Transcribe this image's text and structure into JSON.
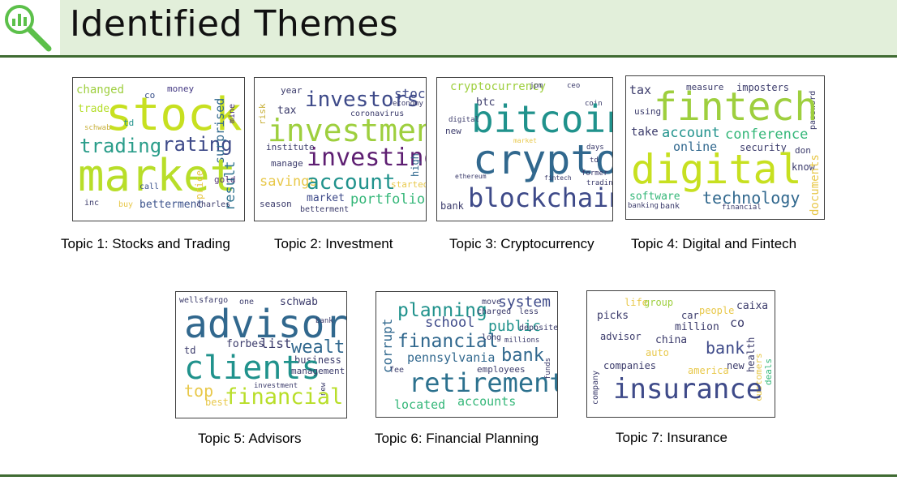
{
  "header": {
    "title": "Identified Themes",
    "icon": "magnifier-chart-icon",
    "accent_color": "#5cc04a",
    "band_color": "#e2efda",
    "rule_color": "#3f6b32"
  },
  "topics": [
    {
      "caption": "Topic 1: Stocks and Trading",
      "words": [
        "changed",
        "co",
        "money",
        "trade",
        "stock",
        "td",
        "schwab",
        "trading",
        "rating",
        "surprised",
        "mine",
        "market",
        "result",
        "price",
        "gold",
        "call",
        "inc",
        "buy",
        "betterment",
        "charles"
      ]
    },
    {
      "caption": "Topic 2: Investment",
      "words": [
        "year",
        "investors",
        "stock",
        "economy",
        "risk",
        "tax",
        "investment",
        "coronavirus",
        "institute",
        "investing",
        "high",
        "manage",
        "savings",
        "account",
        "started",
        "market",
        "portfolio",
        "season",
        "betterment"
      ]
    },
    {
      "caption": "Topic 3: Cryptocurrency",
      "words": [
        "cryptocurrency",
        "jpm",
        "ceo",
        "coin",
        "btc",
        "bitcoin",
        "digital",
        "new",
        "crypto",
        "market",
        "days",
        "td",
        "ethereum",
        "fintech",
        "former",
        "trading",
        "bank",
        "blockchain"
      ]
    },
    {
      "caption": "Topic 4: Digital and Fintech",
      "words": [
        "tax",
        "measure",
        "imposters",
        "password",
        "using",
        "fintech",
        "take",
        "account",
        "conference",
        "online",
        "security",
        "don",
        "digital",
        "know",
        "documents",
        "software",
        "technology",
        "banking",
        "bank",
        "financial"
      ]
    },
    {
      "caption": "Topic 5: Advisors",
      "words": [
        "wellsfargo",
        "one",
        "schwab",
        "advisor",
        "bank",
        "td",
        "forbes",
        "list",
        "wealth",
        "business",
        "clients",
        "management",
        "investment",
        "new",
        "top",
        "best",
        "financial"
      ]
    },
    {
      "caption": "Topic 6: Financial Planning",
      "words": [
        "planning",
        "move",
        "system",
        "charged",
        "less",
        "corrupt",
        "school",
        "public",
        "deposited",
        "financial",
        "long",
        "millions",
        "pennsylvania",
        "bank",
        "employees",
        "funds",
        "fee",
        "retirement",
        "located",
        "accounts"
      ]
    },
    {
      "caption": "Topic 7: Insurance",
      "words": [
        "life",
        "group",
        "caixa",
        "picks",
        "car",
        "people",
        "co",
        "million",
        "advisor",
        "china",
        "bank",
        "health",
        "auto",
        "customers",
        "deals",
        "companies",
        "america",
        "new",
        "company",
        "insurance"
      ]
    }
  ]
}
